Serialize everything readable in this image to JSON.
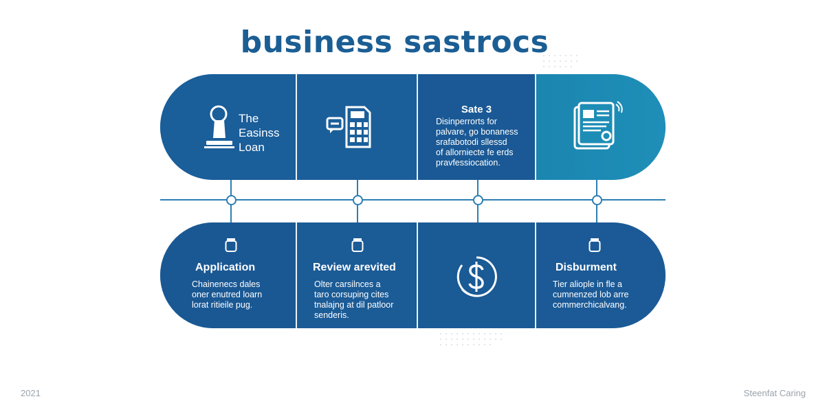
{
  "title": "business sastrocs",
  "top_row": [
    {
      "icon": "stamp-icon",
      "label_lines": [
        "The",
        "Easinss",
        "Loan"
      ]
    },
    {
      "icon": "chat-calculator-icon"
    },
    {
      "heading": "Sate 3",
      "desc_lines": [
        "Disinperrorts for",
        "palvare, go bonaness",
        "srafabotodi sllessd",
        "of allorniecte fe erds",
        "pravfessiocation."
      ]
    },
    {
      "icon": "document-tablet-icon"
    }
  ],
  "bottom_row": [
    {
      "icon": "jar-icon",
      "heading": "Application",
      "desc_lines": [
        "Chainenecs dales",
        "oner enutred loarn",
        "lorat ritieile pug."
      ]
    },
    {
      "icon": "jar-icon",
      "heading": "Review arevited",
      "desc_lines": [
        "Olter carsilnces a",
        "taro corsuping cites",
        "tnalajng at dil patloor",
        "senderis."
      ]
    },
    {
      "icon": "dollar-coin-icon"
    },
    {
      "icon": "jar-icon",
      "heading": "Disburment",
      "desc_lines": [
        "Tier aliople in fle a",
        "cumnenzed lob arre",
        "commerchicalvang."
      ]
    }
  ],
  "footer": {
    "left": "2021",
    "right": "Steenfat Caring"
  }
}
